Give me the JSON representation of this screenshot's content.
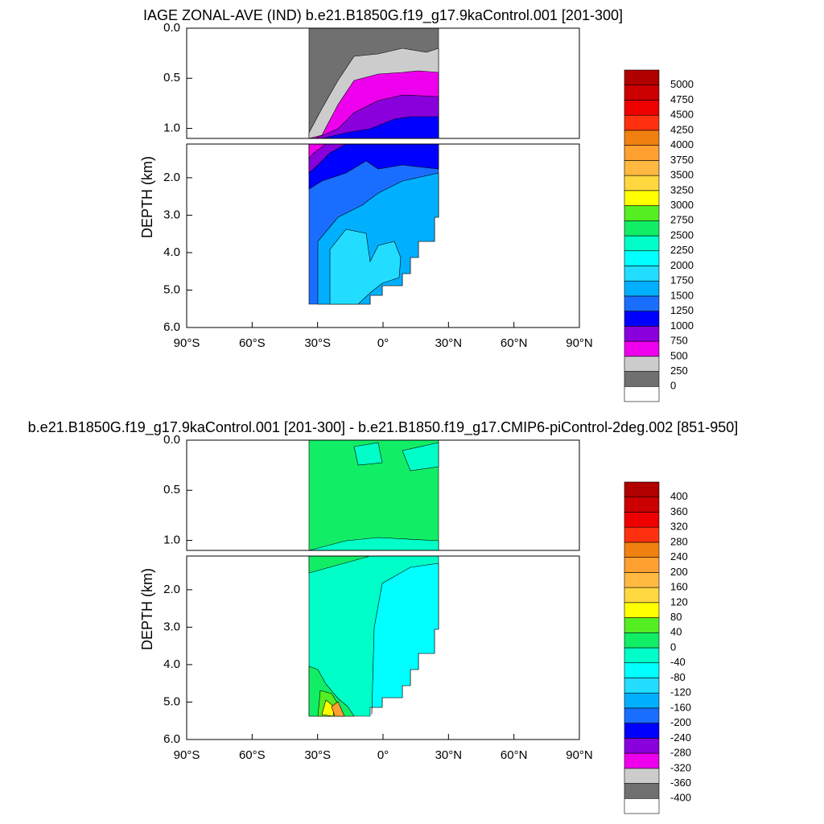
{
  "chart_data": [
    {
      "type": "contour",
      "title": "IAGE ZONAL-AVE (IND) b.e21.B1850G.f19_g17.9kaControl.001 [201-300]",
      "ylabel": "DEPTH (km)",
      "xlim": [
        -90,
        90
      ],
      "xticks": [
        {
          "value": -90,
          "label": "90°S"
        },
        {
          "value": -60,
          "label": "60°S"
        },
        {
          "value": -30,
          "label": "30°S"
        },
        {
          "value": 0,
          "label": "0°"
        },
        {
          "value": 30,
          "label": "30°N"
        },
        {
          "value": 60,
          "label": "60°N"
        },
        {
          "value": 90,
          "label": "90°N"
        }
      ],
      "panels": [
        {
          "ylim": [
            0,
            1.1
          ],
          "yticks": [
            {
              "value": 0,
              "label": "0.0"
            },
            {
              "value": 0.5,
              "label": "0.5"
            },
            {
              "value": 1,
              "label": "1.0"
            }
          ]
        },
        {
          "ylim": [
            1.1,
            6
          ],
          "yticks": [
            {
              "value": 2,
              "label": "2.0"
            },
            {
              "value": 3,
              "label": "3.0"
            },
            {
              "value": 4,
              "label": "4.0"
            },
            {
              "value": 5,
              "label": "5.0"
            },
            {
              "value": 6,
              "label": "6.0"
            }
          ]
        }
      ],
      "levels": [
        0,
        250,
        500,
        750,
        1000,
        1250,
        1500,
        1750,
        2000,
        2250,
        2500,
        2750,
        3000,
        3250,
        3500,
        3750,
        4000,
        4250,
        4500,
        4750,
        5000
      ],
      "colors": [
        "#ffffff",
        "#707070",
        "#cccccc",
        "#ee00ee",
        "#8a00dd",
        "#0000ff",
        "#1a6eff",
        "#00b0ff",
        "#22ddff",
        "#00ffff",
        "#00ffc8",
        "#11ee66",
        "#55ee22",
        "#ffff00",
        "#ffd840",
        "#ffb840",
        "#ffa030",
        "#f08010",
        "#ff3010",
        "#ee0000",
        "#cc0000",
        "#b00000"
      ]
    },
    {
      "type": "contour",
      "title": "b.e21.B1850G.f19_g17.9kaControl.001 [201-300] - b.e21.B1850.f19_g17.CMIP6-piControl-2deg.002 [851-950]",
      "ylabel": "DEPTH (km)",
      "xlim": [
        -90,
        90
      ],
      "xticks": [
        {
          "value": -90,
          "label": "90°S"
        },
        {
          "value": -60,
          "label": "60°S"
        },
        {
          "value": -30,
          "label": "30°S"
        },
        {
          "value": 0,
          "label": "0°"
        },
        {
          "value": 30,
          "label": "30°N"
        },
        {
          "value": 60,
          "label": "60°N"
        },
        {
          "value": 90,
          "label": "90°N"
        }
      ],
      "panels": [
        {
          "ylim": [
            0,
            1.1
          ],
          "yticks": [
            {
              "value": 0,
              "label": "0.0"
            },
            {
              "value": 0.5,
              "label": "0.5"
            },
            {
              "value": 1,
              "label": "1.0"
            }
          ]
        },
        {
          "ylim": [
            1.1,
            6
          ],
          "yticks": [
            {
              "value": 2,
              "label": "2.0"
            },
            {
              "value": 3,
              "label": "3.0"
            },
            {
              "value": 4,
              "label": "4.0"
            },
            {
              "value": 5,
              "label": "5.0"
            },
            {
              "value": 6,
              "label": "6.0"
            }
          ]
        }
      ],
      "levels": [
        -400,
        -360,
        -320,
        -280,
        -240,
        -200,
        -160,
        -120,
        -80,
        -40,
        0,
        40,
        80,
        120,
        160,
        200,
        240,
        280,
        320,
        360,
        400
      ],
      "colors": [
        "#ffffff",
        "#707070",
        "#cccccc",
        "#ee00ee",
        "#8a00dd",
        "#0000ff",
        "#1a6eff",
        "#00b0ff",
        "#22ddff",
        "#00ffff",
        "#00ffc8",
        "#11ee66",
        "#55ee22",
        "#ffff00",
        "#ffd840",
        "#ffb840",
        "#ffa030",
        "#f08010",
        "#ff3010",
        "#ee0000",
        "#cc0000",
        "#b00000"
      ]
    }
  ]
}
